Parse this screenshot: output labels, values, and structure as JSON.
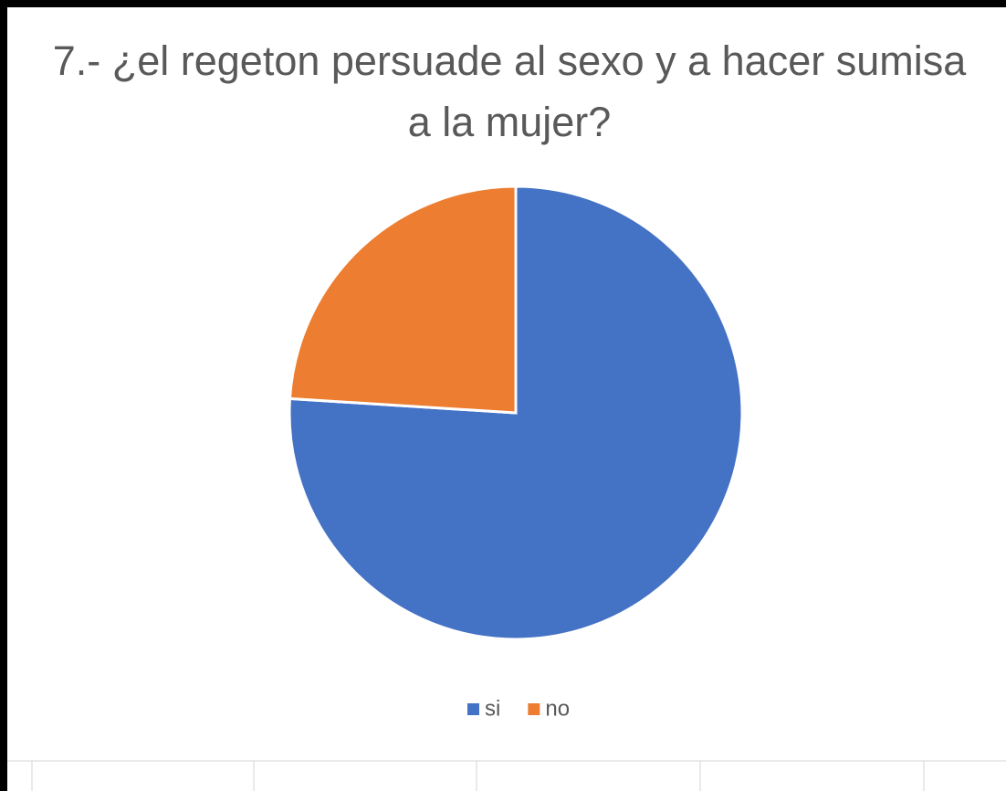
{
  "chart_data": {
    "type": "pie",
    "title": "7.-  ¿el regeton persuade al sexo y  a hacer sumisa a la mujer?",
    "categories": [
      "si",
      "no"
    ],
    "values": [
      76,
      24
    ],
    "colors": [
      "#4472c4",
      "#ed7d31"
    ],
    "legend": "bottom"
  }
}
